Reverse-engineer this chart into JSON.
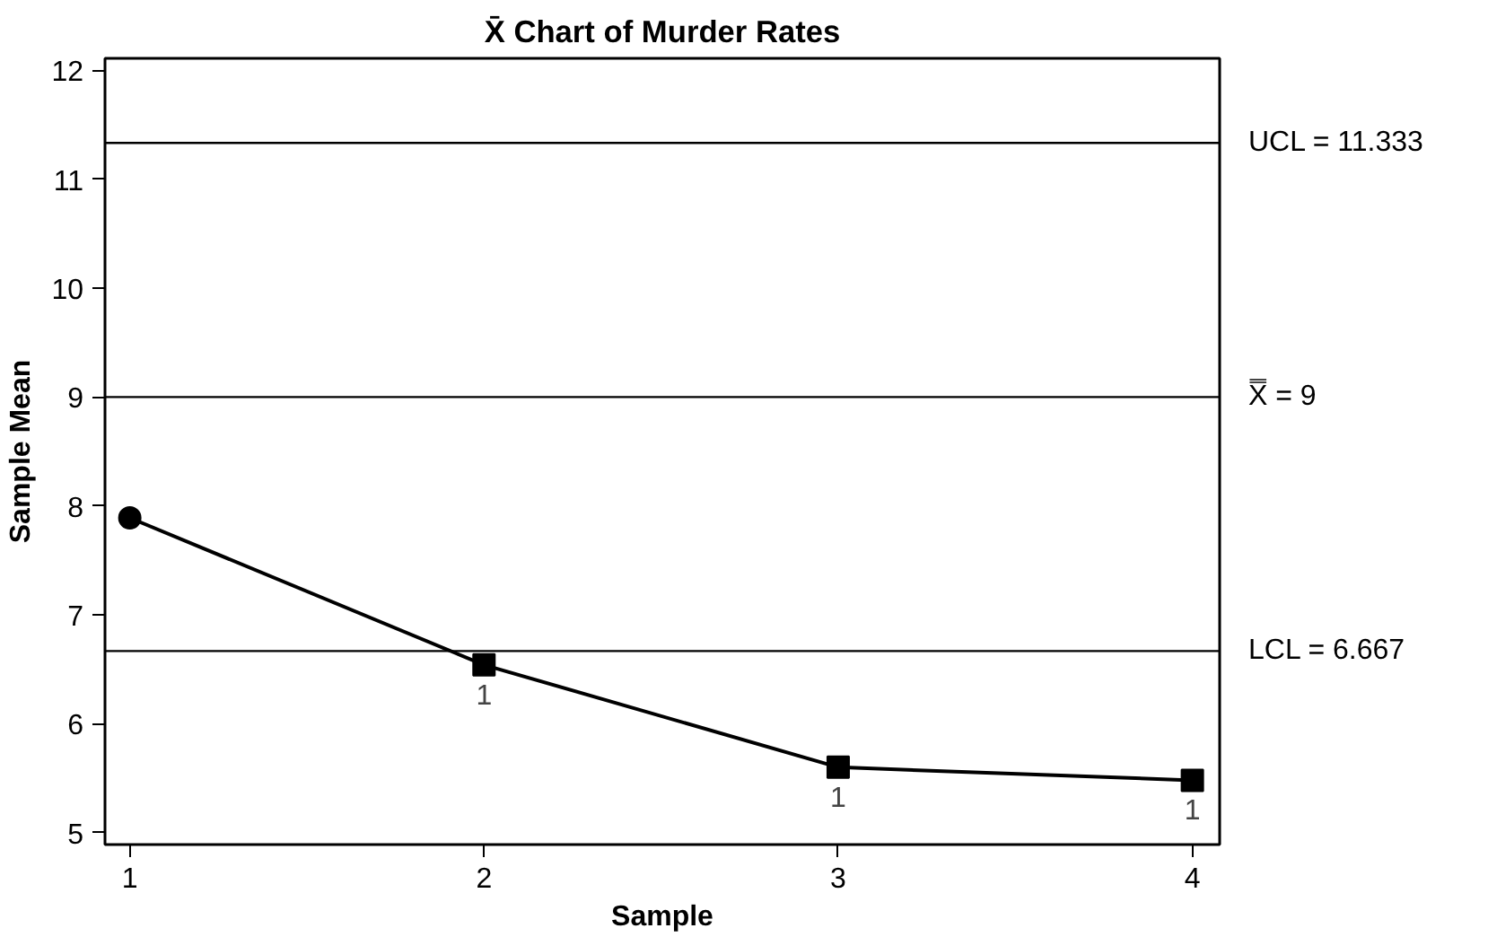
{
  "chart_data": {
    "type": "line",
    "title": "X̄ Chart of Murder Rates",
    "xlabel": "Sample",
    "ylabel": "Sample Mean",
    "xlim": [
      0.93,
      4.077
    ],
    "ylim": [
      4.89,
      12.11
    ],
    "xticks": [
      1,
      2,
      3,
      4
    ],
    "yticks": [
      5,
      6,
      7,
      8,
      9,
      10,
      11,
      12
    ],
    "grid": false,
    "series": [
      {
        "marker": "none",
        "color": "#000000",
        "x": [
          1,
          2,
          3,
          4
        ],
        "values": [
          7.89,
          6.54,
          5.6,
          5.48
        ]
      },
      {
        "type": "scatter",
        "marker": "circle",
        "color": "#000000",
        "x": [
          1
        ],
        "values": [
          7.89
        ]
      },
      {
        "type": "scatter",
        "marker": "square",
        "color": "#000000",
        "x": [
          2,
          3,
          4
        ],
        "values": [
          6.54,
          5.6,
          5.48
        ]
      }
    ],
    "ref_lines": [
      {
        "axis": "y",
        "value": 11.333,
        "label": "UCL = 11.333",
        "color": "#000000"
      },
      {
        "axis": "y",
        "value": 9,
        "label": "X̿ = 9",
        "color": "#000000"
      },
      {
        "axis": "y",
        "value": 6.667,
        "label": "LCL = 6.667",
        "color": "#000000"
      }
    ],
    "annotations": [
      {
        "text": "1",
        "x": 2,
        "y": 6.54
      },
      {
        "text": "1",
        "x": 3,
        "y": 5.6
      },
      {
        "text": "1",
        "x": 4,
        "y": 5.48
      }
    ]
  }
}
